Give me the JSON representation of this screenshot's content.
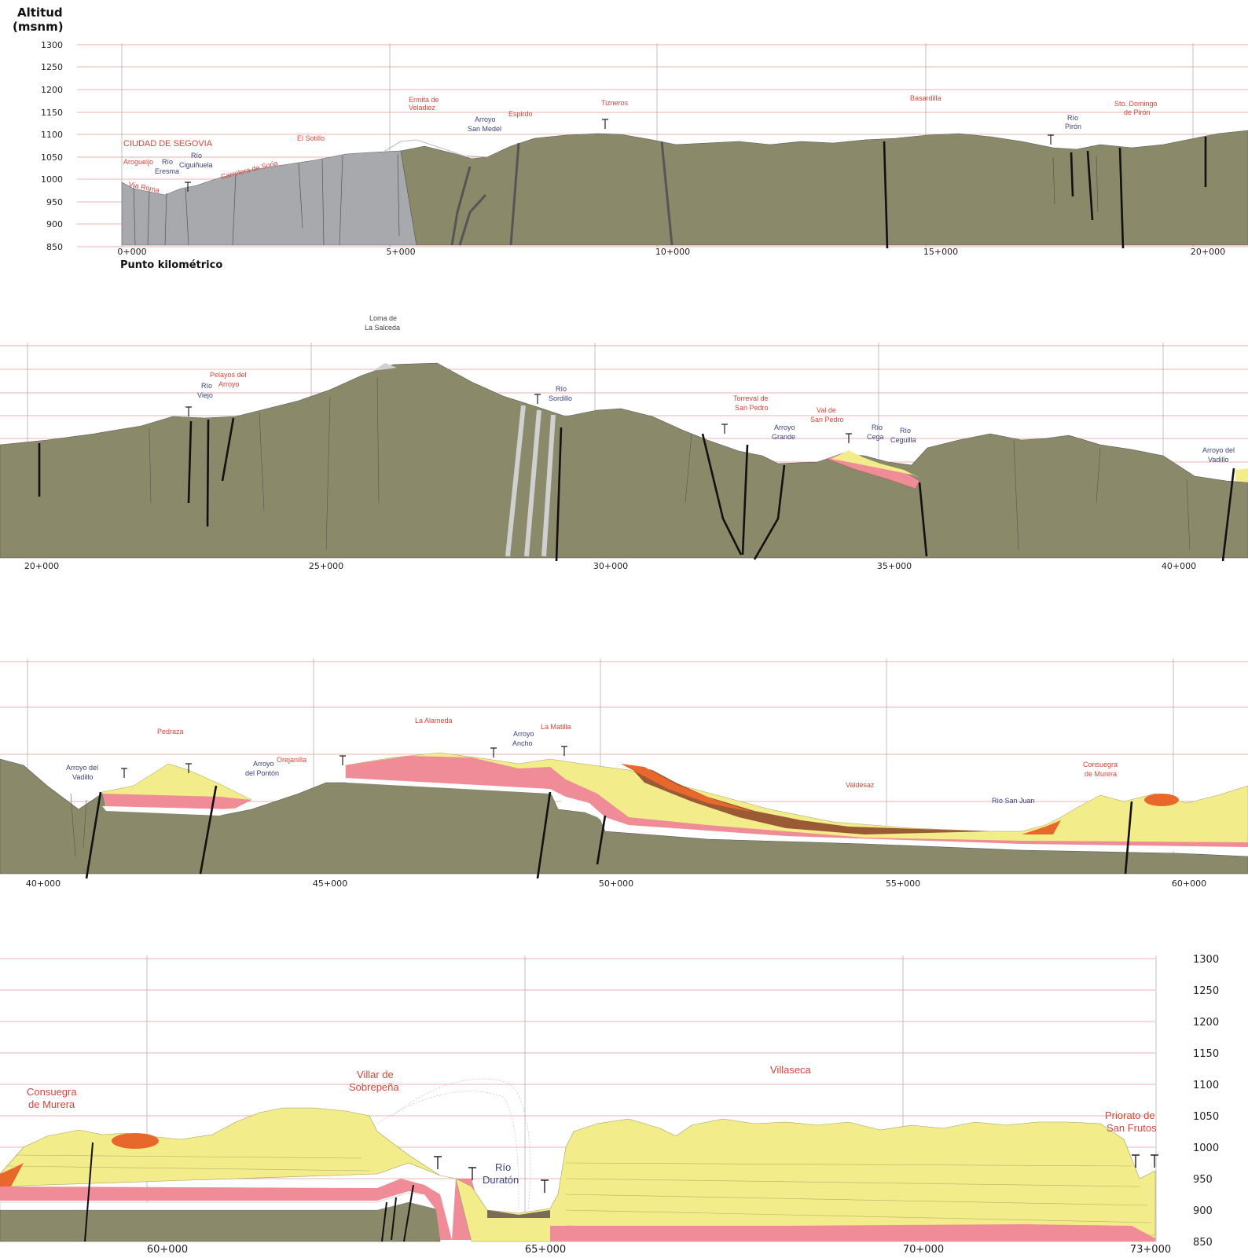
{
  "axis": {
    "title_line1": "Altitud",
    "title_line2": "(msnm)",
    "y_ticks": [
      "1300",
      "1250",
      "1200",
      "1150",
      "1100",
      "1050",
      "1000",
      "950",
      "900",
      "850"
    ],
    "x_caption": "Punto kilométrico"
  },
  "panels": [
    {
      "km_ticks": [
        "0+000",
        "5+000",
        "10+000",
        "15+000",
        "20+000"
      ],
      "labels": [
        {
          "text": "CIUDAD DE SEGOVIA",
          "color": "red"
        },
        {
          "text": "Arogueijo",
          "color": "red"
        },
        {
          "text": "Río",
          "color": "blue"
        },
        {
          "text": "Eresma",
          "color": "blue"
        },
        {
          "text": "Río",
          "color": "blue"
        },
        {
          "text": "Ciguiñuela",
          "color": "blue"
        },
        {
          "text": "Vía Roma",
          "color": "red"
        },
        {
          "text": "Carretera de Soria",
          "color": "red"
        },
        {
          "text": "El Sotillo",
          "color": "red"
        },
        {
          "text": "Ermita de",
          "color": "red"
        },
        {
          "text": "Veladiez",
          "color": "red"
        },
        {
          "text": "Arroyo",
          "color": "blue"
        },
        {
          "text": "San Medel",
          "color": "blue"
        },
        {
          "text": "Espirdo",
          "color": "red"
        },
        {
          "text": "Tizneros",
          "color": "red"
        },
        {
          "text": "Basardilla",
          "color": "red"
        },
        {
          "text": "Río",
          "color": "blue"
        },
        {
          "text": "Pirón",
          "color": "blue"
        },
        {
          "text": "Sto. Domingo",
          "color": "red"
        },
        {
          "text": "de Pirón",
          "color": "red"
        }
      ]
    },
    {
      "km_ticks": [
        "20+000",
        "25+000",
        "30+000",
        "35+000",
        "40+000"
      ],
      "labels": [
        {
          "text": "Loma de",
          "color": "gray"
        },
        {
          "text": "La Salceda",
          "color": "gray"
        },
        {
          "text": "Pelayos del",
          "color": "red"
        },
        {
          "text": "Arroyo",
          "color": "red"
        },
        {
          "text": "Río",
          "color": "blue"
        },
        {
          "text": "Viejo",
          "color": "blue"
        },
        {
          "text": "Río",
          "color": "blue"
        },
        {
          "text": "Sordillo",
          "color": "blue"
        },
        {
          "text": "Torreval de",
          "color": "red"
        },
        {
          "text": "San Pedro",
          "color": "red"
        },
        {
          "text": "Arroyo",
          "color": "blue"
        },
        {
          "text": "Grande",
          "color": "blue"
        },
        {
          "text": "Val de",
          "color": "red"
        },
        {
          "text": "San Pedro",
          "color": "red"
        },
        {
          "text": "Río",
          "color": "blue"
        },
        {
          "text": "Cega",
          "color": "blue"
        },
        {
          "text": "Río",
          "color": "blue"
        },
        {
          "text": "Ceguilla",
          "color": "blue"
        },
        {
          "text": "Arroyo del",
          "color": "blue"
        },
        {
          "text": "Vadillo",
          "color": "blue"
        }
      ]
    },
    {
      "km_ticks": [
        "40+000",
        "45+000",
        "50+000",
        "55+000",
        "60+000"
      ],
      "labels": [
        {
          "text": "Pedraza",
          "color": "red"
        },
        {
          "text": "Arroyo del",
          "color": "blue"
        },
        {
          "text": "Vadillo",
          "color": "blue"
        },
        {
          "text": "Arroyo",
          "color": "blue"
        },
        {
          "text": "del Pontón",
          "color": "blue"
        },
        {
          "text": "Orejanilla",
          "color": "red"
        },
        {
          "text": "La Alameda",
          "color": "red"
        },
        {
          "text": "Arroyo",
          "color": "blue"
        },
        {
          "text": "Ancho",
          "color": "blue"
        },
        {
          "text": "La Matilla",
          "color": "red"
        },
        {
          "text": "Valdesaz",
          "color": "red"
        },
        {
          "text": "Río San Juan",
          "color": "blue"
        },
        {
          "text": "Consuegra",
          "color": "red"
        },
        {
          "text": "de Murera",
          "color": "red"
        }
      ]
    },
    {
      "km_ticks": [
        "60+000",
        "65+000",
        "70+000",
        "73+000"
      ],
      "y_ticks_right": [
        "1300",
        "1250",
        "1200",
        "1150",
        "1100",
        "1050",
        "1000",
        "950",
        "900",
        "850"
      ],
      "labels": [
        {
          "text": "Consuegra",
          "color": "red"
        },
        {
          "text": "de Murera",
          "color": "red"
        },
        {
          "text": "Villar de",
          "color": "red"
        },
        {
          "text": "Sobrepeña",
          "color": "red"
        },
        {
          "text": "Villaseca",
          "color": "red"
        },
        {
          "text": "Río",
          "color": "blue"
        },
        {
          "text": "Duratón",
          "color": "blue"
        },
        {
          "text": "Priorato de",
          "color": "red"
        },
        {
          "text": "San Frutos",
          "color": "red"
        }
      ]
    }
  ],
  "colors": {
    "olive": "#8a8a6a",
    "gray_rock": "#a8a9ad",
    "yellow": "#f2ec8a",
    "pink": "#ef8c98",
    "orange": "#e8682c",
    "brown": "#9a5a36",
    "gridline": "#e07a78",
    "red_label": "#d6453a",
    "blue_label": "#3a3f7a"
  }
}
